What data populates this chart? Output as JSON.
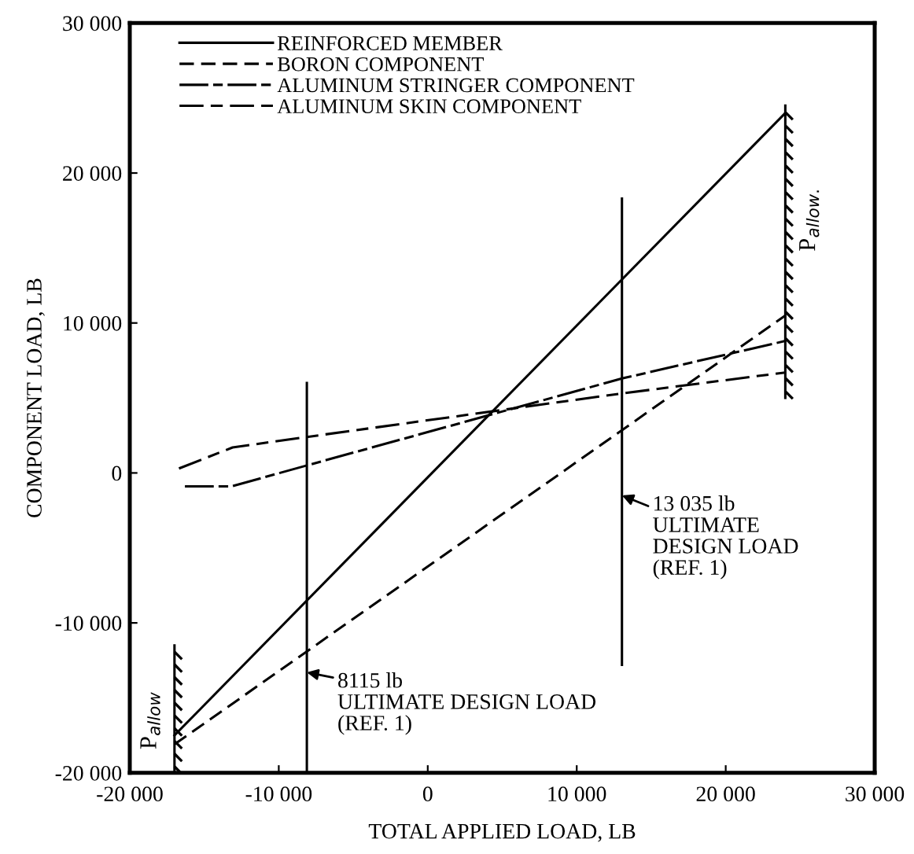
{
  "chart_data": {
    "type": "line",
    "xlabel": "TOTAL APPLIED LOAD, LB",
    "ylabel": "COMPONENT LOAD, LB",
    "xlim": [
      -20000,
      30000
    ],
    "ylim": [
      -20000,
      30000
    ],
    "xticks": [
      {
        "value": -20000,
        "label": "-20 000"
      },
      {
        "value": -10000,
        "label": "-10 000"
      },
      0,
      {
        "value": 10000,
        "label": "10 000"
      },
      {
        "value": 20000,
        "label": "20 000"
      },
      {
        "value": 30000,
        "label": "30 000"
      }
    ],
    "yticks": [
      {
        "value": -20000,
        "label": "-20 000"
      },
      {
        "value": -10000,
        "label": "-10 000"
      },
      0,
      {
        "value": 10000,
        "label": "10 000"
      },
      {
        "value": 20000,
        "label": "20 000"
      },
      {
        "value": 30000,
        "label": "30 000"
      }
    ],
    "grid": false,
    "legend": "top left",
    "series": [
      {
        "name": "REINFORCED MEMBER",
        "color": "#000000",
        "line_style": "solid",
        "x": [
          -17000,
          24000
        ],
        "values": [
          -17500,
          24000
        ]
      },
      {
        "name": "BORON COMPONENT",
        "color": "#000000",
        "line_style": "dashed",
        "x": [
          -17000,
          24000
        ],
        "values": [
          -18100,
          10500
        ]
      },
      {
        "name": "ALUMINUM STRINGER COMPONENT",
        "color": "#000000",
        "line_style": "longdash",
        "x": [
          -16300,
          -13200,
          -8115,
          13035,
          24000
        ],
        "values": [
          -900,
          -900,
          500,
          6300,
          8800
        ]
      },
      {
        "name": "ALUMINUM SKIN COMPONENT",
        "color": "#000000",
        "line_style": "dashdot",
        "x": [
          -16700,
          -13100,
          -8115,
          13035,
          24000
        ],
        "values": [
          300,
          1700,
          2400,
          5300,
          6700
        ]
      },
      {
        "color": "#000000",
        "line_style": "solid",
        "x": [
          -8115,
          -8115
        ],
        "values": [
          -20000,
          6000
        ]
      },
      {
        "color": "#000000",
        "line_style": "solid",
        "x": [
          13035,
          13035
        ],
        "values": [
          -12800,
          18300
        ]
      },
      {
        "color": "#000000",
        "line_style": "solid",
        "x": [
          24000,
          24000
        ],
        "values": [
          5000,
          24500
        ]
      },
      {
        "color": "#000000",
        "line_style": "solid",
        "x": [
          -17000,
          -17000
        ],
        "values": [
          -20000,
          -11500
        ]
      }
    ],
    "annotations": [
      {
        "text": "8115 lb\nULTIMATE DESIGN LOAD\n(REF. 1)",
        "x": -8115,
        "y": -13300
      },
      {
        "text": "13 035 lb\nULTIMATE\nDESIGN LOAD\n(REF. 1)",
        "x": 13035,
        "y": -1500
      },
      {
        "text": "P$_{allow.}$",
        "x": 24000,
        "y": 17000
      },
      {
        "text": "P$_{allow}$",
        "x": -17000,
        "y": -16500
      }
    ]
  }
}
